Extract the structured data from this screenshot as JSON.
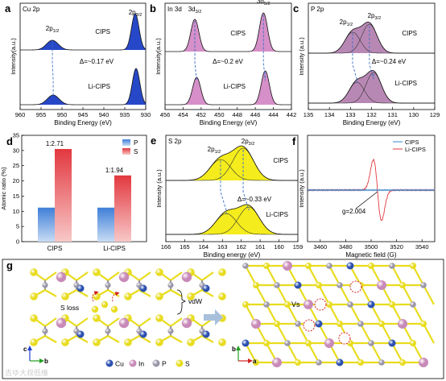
{
  "panels": {
    "a": {
      "letter": "a",
      "label": "Cu 2p"
    },
    "b": {
      "letter": "b",
      "label": "In 3d"
    },
    "c": {
      "letter": "c",
      "label": "P 2p"
    },
    "d": {
      "letter": "d"
    },
    "e": {
      "letter": "e",
      "label": "S 2p"
    },
    "f": {
      "letter": "f"
    },
    "g": {
      "letter": "g"
    }
  },
  "colors": {
    "cu_fill": "#2648c8",
    "in_fill": "#d68fc8",
    "p_fill": "#b888b4",
    "s_fill": "#f4ec1c",
    "bar_p": "#3f7fd8",
    "bar_s": "#e2383f",
    "epr_cips": "#3a86c8",
    "epr_li": "#e2383f",
    "atom_cu": "#2b4fb0",
    "atom_in": "#c88ab8",
    "atom_p": "#9a96a8",
    "atom_s": "#e8dc1e"
  },
  "chart_data": [
    {
      "id": "a",
      "type": "line",
      "title": "Cu 2p",
      "xlabel": "Binding Energy (eV)",
      "ylabel": "Intensity(a.u.)",
      "xlim": [
        960,
        930
      ],
      "x_ticks": [
        960,
        955,
        950,
        945,
        940,
        935,
        930
      ],
      "series": [
        {
          "name": "CIPS",
          "peaks": [
            {
              "label_main": "2p",
              "label_sub": "1/2",
              "center": 952.3
            },
            {
              "label_main": "2p",
              "label_sub": "3/2",
              "center": 932.5
            }
          ]
        },
        {
          "name": "Li-CIPS",
          "peaks": [
            {
              "center": 952.1
            },
            {
              "center": 932.3
            }
          ]
        }
      ],
      "annotations": [
        {
          "text": "Δ=~0.17 eV"
        }
      ]
    },
    {
      "id": "b",
      "type": "line",
      "title": "In 3d",
      "xlabel": "Binding Energy (eV)",
      "ylabel": "Intensity(a.u.)",
      "xlim": [
        456,
        442
      ],
      "x_ticks": [
        456,
        454,
        452,
        450,
        448,
        446,
        444,
        442
      ],
      "series": [
        {
          "name": "CIPS",
          "peaks": [
            {
              "label_main": "3d",
              "label_sub": "3/2",
              "center": 452.7
            },
            {
              "label_main": "3d",
              "label_sub": "5/2",
              "center": 445.1
            }
          ]
        },
        {
          "name": "Li-CIPS",
          "peaks": [
            {
              "center": 452.5
            },
            {
              "center": 444.9
            }
          ]
        }
      ],
      "annotations": [
        {
          "text": "Δ=~0.2 eV"
        }
      ]
    },
    {
      "id": "c",
      "type": "line",
      "title": "P 2p",
      "xlabel": "Binding Energy (eV)",
      "ylabel": "Intensity (a.u.)",
      "xlim": [
        135,
        129
      ],
      "x_ticks": [
        135,
        134,
        133,
        132,
        131,
        130,
        129
      ],
      "series": [
        {
          "name": "CIPS",
          "peaks": [
            {
              "label_main": "2p",
              "label_sub": "1/2",
              "center": 132.9
            },
            {
              "label_main": "2p",
              "label_sub": "3/2",
              "center": 132.1
            }
          ]
        },
        {
          "name": "Li-CIPS",
          "peaks": [
            {
              "center": 132.7
            },
            {
              "center": 131.9
            }
          ]
        }
      ],
      "annotations": [
        {
          "text": "Δ=~0.24 eV"
        }
      ]
    },
    {
      "id": "d",
      "type": "bar",
      "ylabel": "Atomic ratio (%)",
      "categories": [
        "CIPS",
        "Li-CIPS"
      ],
      "ylim": [
        0,
        35
      ],
      "y_ticks": [
        0,
        5,
        10,
        15,
        20,
        25,
        30,
        35
      ],
      "series": [
        {
          "name": "P",
          "values": [
            11.2,
            11.2
          ]
        },
        {
          "name": "S",
          "values": [
            30.5,
            21.8
          ]
        }
      ],
      "annotations": [
        {
          "text": "1:2.71"
        },
        {
          "text": "1:1.94"
        }
      ],
      "legend": "top-right"
    },
    {
      "id": "e",
      "type": "line",
      "title": "S 2p",
      "xlabel": "Binding energy (eV)",
      "ylabel": "Intensity (a.u.)",
      "xlim": [
        166,
        159
      ],
      "x_ticks": [
        166,
        165,
        164,
        163,
        162,
        161,
        160,
        159
      ],
      "series": [
        {
          "name": "CIPS",
          "peaks": [
            {
              "label_main": "2p",
              "label_sub": "1/2",
              "center": 163.1
            },
            {
              "label_main": "2p",
              "label_sub": "3/2",
              "center": 161.9
            }
          ]
        },
        {
          "name": "Li-CIPS",
          "peaks": [
            {
              "center": 162.8
            },
            {
              "center": 161.6
            }
          ]
        }
      ],
      "annotations": [
        {
          "text": "Δ=~0.33 eV"
        }
      ]
    },
    {
      "id": "f",
      "type": "line",
      "xlabel": "Magnetic field (G)",
      "ylabel": "Intensity (a.u.)",
      "xlim": [
        3450,
        3550
      ],
      "x_ticks": [
        3460,
        3480,
        3500,
        3520,
        3540
      ],
      "series": [
        {
          "name": "CIPS"
        },
        {
          "name": "Li-CIPS",
          "center": 3505
        }
      ],
      "annotations": [
        {
          "text": "g=2.004"
        }
      ],
      "legend": "top-right"
    }
  ],
  "structure": {
    "s_loss": "S loss",
    "vdw": "vdW",
    "vs": "Vs",
    "legend": [
      {
        "symbol": "Cu"
      },
      {
        "symbol": "In"
      },
      {
        "symbol": "P"
      },
      {
        "symbol": "S"
      }
    ],
    "axes_left": {
      "up": "c",
      "right": "b"
    },
    "axes_right": {
      "up": "b",
      "right": "a"
    }
  },
  "watermark": "吉ゆ大叔低维"
}
